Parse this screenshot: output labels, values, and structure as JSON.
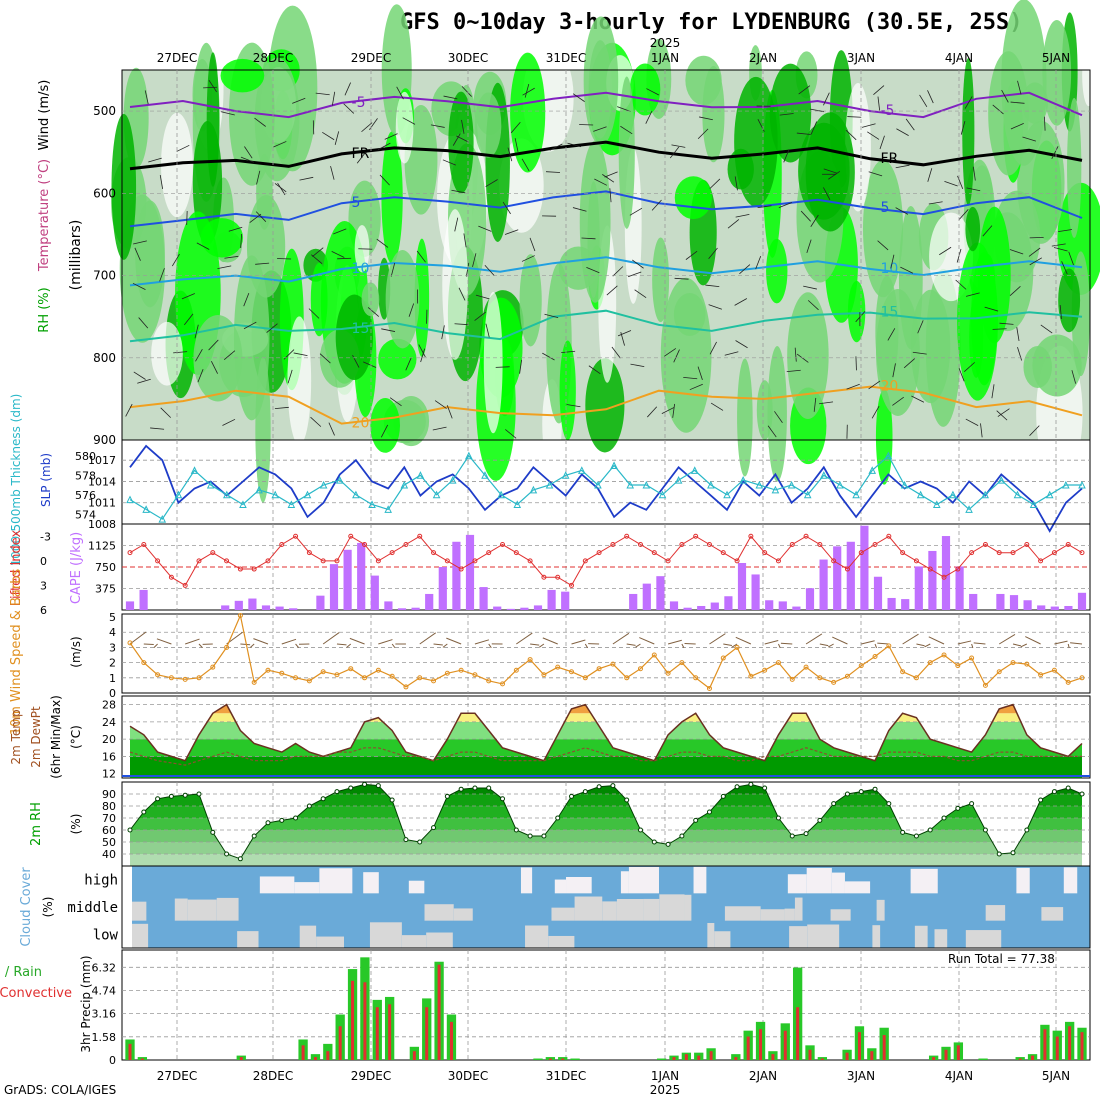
{
  "title": "GFS 0~10day 3-hourly for LYDENBURG (30.5E, 25S)",
  "credit": "GrADS: COLA/IGES",
  "run_total_label": "Run Total = 77.38",
  "year_label": "2025",
  "colors": {
    "rh_dark": "#00b400",
    "rh_bright": "#00ff00",
    "rh_mid": "#74d674",
    "rh_light": "#c8dcc8",
    "slp": "#1e3cc8",
    "thickness": "#2ab8c8",
    "lifted": "#e03030",
    "cape": "#c070ff",
    "wind": "#e09020",
    "barb": "#806040",
    "rain": "#28c828",
    "conv": "#e03030",
    "cloud": "#6aaad8",
    "cloud_clear": "#d8d8d8",
    "temp_orange": "#f0a040",
    "temp_yellow": "#f8f080"
  },
  "chart_data": [
    {
      "panel": "upper-air cross section",
      "type": "heatmap",
      "ylabels": [
        "Wind (m/s)",
        "Temperature (°C)",
        "RH (%)",
        "(millibars)"
      ],
      "yticks": [
        500,
        600,
        700,
        800,
        900
      ],
      "ylim": [
        900,
        450
      ],
      "x_dates": [
        "27DEC",
        "28DEC",
        "29DEC",
        "30DEC",
        "31DEC",
        "1JAN",
        "2JAN",
        "3JAN",
        "4JAN",
        "5JAN"
      ],
      "contours": [
        {
          "label": "-5",
          "color": "#8020c0",
          "level_mb": [
            495,
            500,
            490,
            488,
            485,
            488,
            495,
            500,
            485,
            505
          ]
        },
        {
          "label": "FR",
          "color": "#000000",
          "level_mb": [
            570,
            560,
            552,
            548,
            545,
            550,
            552,
            558,
            555,
            560
          ]
        },
        {
          "label": "5",
          "color": "#2050e0",
          "level_mb": [
            640,
            625,
            612,
            610,
            605,
            612,
            615,
            618,
            612,
            630
          ]
        },
        {
          "label": "10",
          "color": "#20a0e0",
          "level_mb": [
            712,
            700,
            692,
            688,
            685,
            690,
            690,
            692,
            690,
            690
          ]
        },
        {
          "label": "15",
          "color": "#20c0a0",
          "level_mb": [
            780,
            760,
            765,
            770,
            750,
            760,
            755,
            745,
            752,
            750
          ]
        },
        {
          "label": "20",
          "color": "#f0a020",
          "level_mb": [
            860,
            840,
            880,
            860,
            870,
            840,
            850,
            835,
            860,
            870
          ]
        }
      ]
    },
    {
      "panel": "SLP and 1000-500mb thickness",
      "type": "line",
      "ylabels": [
        "1000-500mb Thickness (dm)",
        "SLP (mb)"
      ],
      "y_left_ticks": [
        574,
        576,
        578,
        580
      ],
      "y_right_ticks": [
        1008,
        1011,
        1014,
        1017
      ],
      "series": [
        {
          "name": "SLP (mb)",
          "values": [
            1016,
            1019,
            1017,
            1011,
            1013,
            1014,
            1012,
            1014,
            1016,
            1015,
            1013,
            1009,
            1011,
            1015,
            1017,
            1014,
            1013,
            1016,
            1012,
            1014,
            1015,
            1013,
            1010,
            1012,
            1013,
            1016,
            1014,
            1012,
            1015,
            1013,
            1009,
            1011,
            1010,
            1013,
            1016,
            1014,
            1012,
            1010,
            1014,
            1012,
            1015,
            1011,
            1013,
            1016,
            1012,
            1009,
            1012,
            1015,
            1013,
            1014,
            1013,
            1011,
            1014,
            1012,
            1015,
            1013,
            1011,
            1007,
            1011,
            1013
          ]
        },
        {
          "name": "1000-500mb Thickness (dm)",
          "values": [
            575.5,
            574.5,
            573.5,
            576,
            578.5,
            577,
            576,
            575,
            576.5,
            576,
            575,
            576,
            577,
            577.5,
            576,
            575,
            574.5,
            577,
            578,
            576,
            577.5,
            580,
            578,
            576,
            575,
            576.5,
            577,
            578,
            578.5,
            577,
            579,
            577,
            577,
            576,
            577.5,
            578.5,
            577,
            576,
            577.5,
            577,
            576.5,
            577,
            576,
            578,
            577,
            576,
            578.5,
            580,
            577,
            576,
            575,
            576,
            574.5,
            576,
            577.5,
            576,
            575,
            576,
            577,
            577
          ]
        }
      ]
    },
    {
      "panel": "Lifted Index and CAPE",
      "type": "bar",
      "ylabels": [
        "Lifted Index",
        "CAPE (J/kg)"
      ],
      "y_left_ticks": [
        6,
        3,
        0,
        -3
      ],
      "y_right_ticks": [
        375,
        750,
        1125
      ],
      "series": [
        {
          "name": "CAPE (J/kg)",
          "values": [
            150,
            350,
            0,
            0,
            0,
            0,
            0,
            80,
            160,
            200,
            80,
            60,
            30,
            0,
            250,
            800,
            1050,
            1170,
            600,
            150,
            30,
            40,
            280,
            750,
            1190,
            1310,
            400,
            60,
            20,
            40,
            80,
            350,
            320,
            0,
            0,
            0,
            0,
            280,
            460,
            590,
            150,
            40,
            70,
            130,
            240,
            820,
            620,
            170,
            150,
            60,
            380,
            880,
            1110,
            1190,
            1470,
            580,
            210,
            190,
            760,
            1030,
            1290,
            760,
            280,
            0,
            280,
            260,
            170,
            80,
            60,
            70,
            300
          ]
        },
        {
          "name": "Lifted Index",
          "values": [
            -1,
            -2,
            0,
            2,
            3,
            0,
            -1,
            0,
            1,
            1,
            0,
            -2,
            -3,
            -1,
            0,
            0,
            -3,
            -2,
            0,
            -1,
            -2,
            -3,
            -1,
            0,
            1,
            0,
            -1,
            -2,
            -1,
            0,
            2,
            2,
            3,
            0,
            -1,
            -2,
            -3,
            -2,
            -1,
            0,
            -2,
            -3,
            -2,
            -1,
            0,
            -3,
            -1,
            0,
            -2,
            -3,
            -2,
            0,
            1,
            -1,
            -2,
            -3,
            -1,
            0,
            1,
            2,
            1,
            -1,
            -2,
            -1,
            -1,
            -2,
            0,
            -1,
            -2,
            -1
          ]
        }
      ]
    },
    {
      "panel": "10m wind speed and barbs",
      "type": "line",
      "ylabels": [
        "10m Wind Speed & Barbs",
        "(m/s)"
      ],
      "yticks": [
        0,
        1,
        2,
        3,
        4,
        5
      ],
      "series": [
        {
          "name": "10m Wind Speed",
          "values": [
            3.3,
            2.0,
            1.2,
            1.0,
            0.9,
            1.0,
            1.7,
            3.0,
            5.1,
            0.7,
            1.5,
            1.3,
            1.0,
            0.8,
            1.4,
            1.2,
            1.6,
            1.0,
            1.5,
            1.1,
            0.4,
            1.0,
            0.8,
            1.3,
            1.5,
            1.2,
            0.8,
            0.6,
            1.5,
            2.2,
            1.2,
            1.7,
            1.4,
            1.0,
            1.6,
            1.9,
            1.0,
            1.6,
            2.5,
            1.3,
            2.0,
            1.0,
            0.3,
            2.3,
            3.0,
            1.1,
            1.5,
            2.0,
            0.9,
            1.7,
            1.0,
            0.7,
            1.1,
            1.8,
            2.4,
            3.1,
            1.4,
            1.0,
            2.0,
            2.5,
            1.8,
            2.3,
            0.5,
            1.4,
            2.0,
            1.9,
            1.2,
            1.5,
            0.7,
            1.0
          ]
        }
      ]
    },
    {
      "panel": "2m temperature and dewpoint",
      "type": "area",
      "ylabels": [
        "2m Temp",
        "2m DewPt",
        "(6hr Min/Max)",
        "(°C)"
      ],
      "yticks": [
        12,
        16,
        20,
        24,
        28
      ],
      "series": [
        {
          "name": "2m Temp",
          "values": [
            23,
            21,
            17,
            16,
            15,
            21,
            26,
            28,
            22,
            19,
            18,
            17,
            19,
            17,
            16,
            17,
            18,
            24,
            25,
            22,
            17,
            16,
            15,
            20,
            26,
            26,
            22,
            18,
            17,
            16,
            15,
            21,
            27,
            28,
            23,
            18,
            17,
            16,
            15,
            21,
            24,
            26,
            21,
            18,
            17,
            16,
            15,
            21,
            26,
            26,
            20,
            18,
            17,
            16,
            15,
            22,
            26,
            25,
            20,
            19,
            18,
            17,
            21,
            27,
            28,
            21,
            18,
            17,
            16,
            19
          ]
        },
        {
          "name": "2m DewPt",
          "values": [
            17,
            16,
            15,
            14.5,
            14,
            15,
            16,
            17,
            16,
            15,
            15,
            15,
            16,
            16,
            16,
            17,
            17,
            18,
            18,
            17,
            16,
            16,
            15,
            16,
            17,
            17,
            16,
            15,
            15,
            15,
            15,
            16,
            17,
            18,
            17,
            16,
            16,
            15,
            15,
            16,
            17,
            17,
            16,
            16,
            15,
            15,
            16,
            16,
            17,
            18,
            17,
            16,
            16,
            16,
            16,
            17,
            17,
            17,
            16,
            16,
            15,
            15,
            16,
            17,
            17,
            16,
            16,
            16,
            16,
            16
          ]
        }
      ]
    },
    {
      "panel": "2m relative humidity",
      "type": "area",
      "ylabels": [
        "2m RH",
        "(%)"
      ],
      "yticks": [
        40,
        50,
        60,
        70,
        80,
        90
      ],
      "series": [
        {
          "name": "2m RH",
          "values": [
            60,
            75,
            86,
            88,
            89,
            90,
            58,
            40,
            36,
            55,
            66,
            68,
            70,
            80,
            86,
            92,
            95,
            98,
            97,
            85,
            52,
            50,
            62,
            88,
            94,
            95,
            95,
            86,
            60,
            55,
            55,
            70,
            88,
            92,
            96,
            97,
            85,
            60,
            50,
            48,
            55,
            68,
            75,
            88,
            96,
            98,
            95,
            70,
            55,
            57,
            68,
            82,
            90,
            92,
            94,
            82,
            58,
            55,
            60,
            70,
            78,
            82,
            60,
            40,
            41,
            60,
            85,
            92,
            95,
            90
          ]
        }
      ]
    },
    {
      "panel": "Cloud cover",
      "type": "heatmap",
      "ylabels": [
        "Cloud Cover",
        "(%)"
      ],
      "rows": [
        "high",
        "middle",
        "low"
      ]
    },
    {
      "panel": "3hr precipitation",
      "type": "bar",
      "ylabels": [
        "Total / Rain",
        "Convective",
        "3hr Precip (mm)"
      ],
      "yticks": [
        0,
        1.58,
        3.16,
        4.74,
        6.32
      ],
      "series": [
        {
          "name": "Total / Rain",
          "values": [
            1.4,
            0.2,
            0,
            0,
            0,
            0,
            0,
            0,
            0,
            0.3,
            0,
            0,
            0,
            0,
            1.4,
            0.4,
            1.1,
            3.1,
            6.2,
            7.0,
            4.1,
            4.3,
            0,
            0.9,
            4.2,
            6.7,
            3.1,
            0,
            0,
            0,
            0,
            0,
            0,
            0.1,
            0.2,
            0.2,
            0.1,
            0,
            0,
            0,
            0,
            0,
            0,
            0.1,
            0.3,
            0.5,
            0.5,
            0.8,
            0,
            0.4,
            2.0,
            2.6,
            0.6,
            2.5,
            6.3,
            1.0,
            0.2,
            0,
            0.7,
            2.3,
            0.8,
            2.2,
            0,
            0,
            0,
            0.3,
            0.9,
            1.2,
            0,
            0.1,
            0,
            0,
            0.2,
            0.4,
            2.4,
            2.0,
            2.6,
            2.2
          ]
        },
        {
          "name": "Convective",
          "values": [
            1.1,
            0.1,
            0,
            0,
            0,
            0,
            0,
            0,
            0,
            0.2,
            0,
            0,
            0,
            0,
            1.0,
            0.2,
            0.6,
            2.3,
            5.4,
            5.3,
            3.6,
            3.8,
            0,
            0.6,
            3.6,
            6.5,
            2.6,
            0,
            0,
            0,
            0,
            0,
            0,
            0,
            0.1,
            0.1,
            0,
            0,
            0,
            0,
            0,
            0,
            0,
            0,
            0.2,
            0.4,
            0.3,
            0.6,
            0,
            0.2,
            1.6,
            2.1,
            0.4,
            2.0,
            3.6,
            0.7,
            0.1,
            0,
            0.5,
            1.9,
            0.6,
            1.7,
            0,
            0,
            0,
            0.2,
            0.7,
            1.0,
            0,
            0,
            0,
            0,
            0.1,
            0.3,
            2.1,
            1.6,
            2.3,
            1.9
          ]
        }
      ]
    }
  ]
}
